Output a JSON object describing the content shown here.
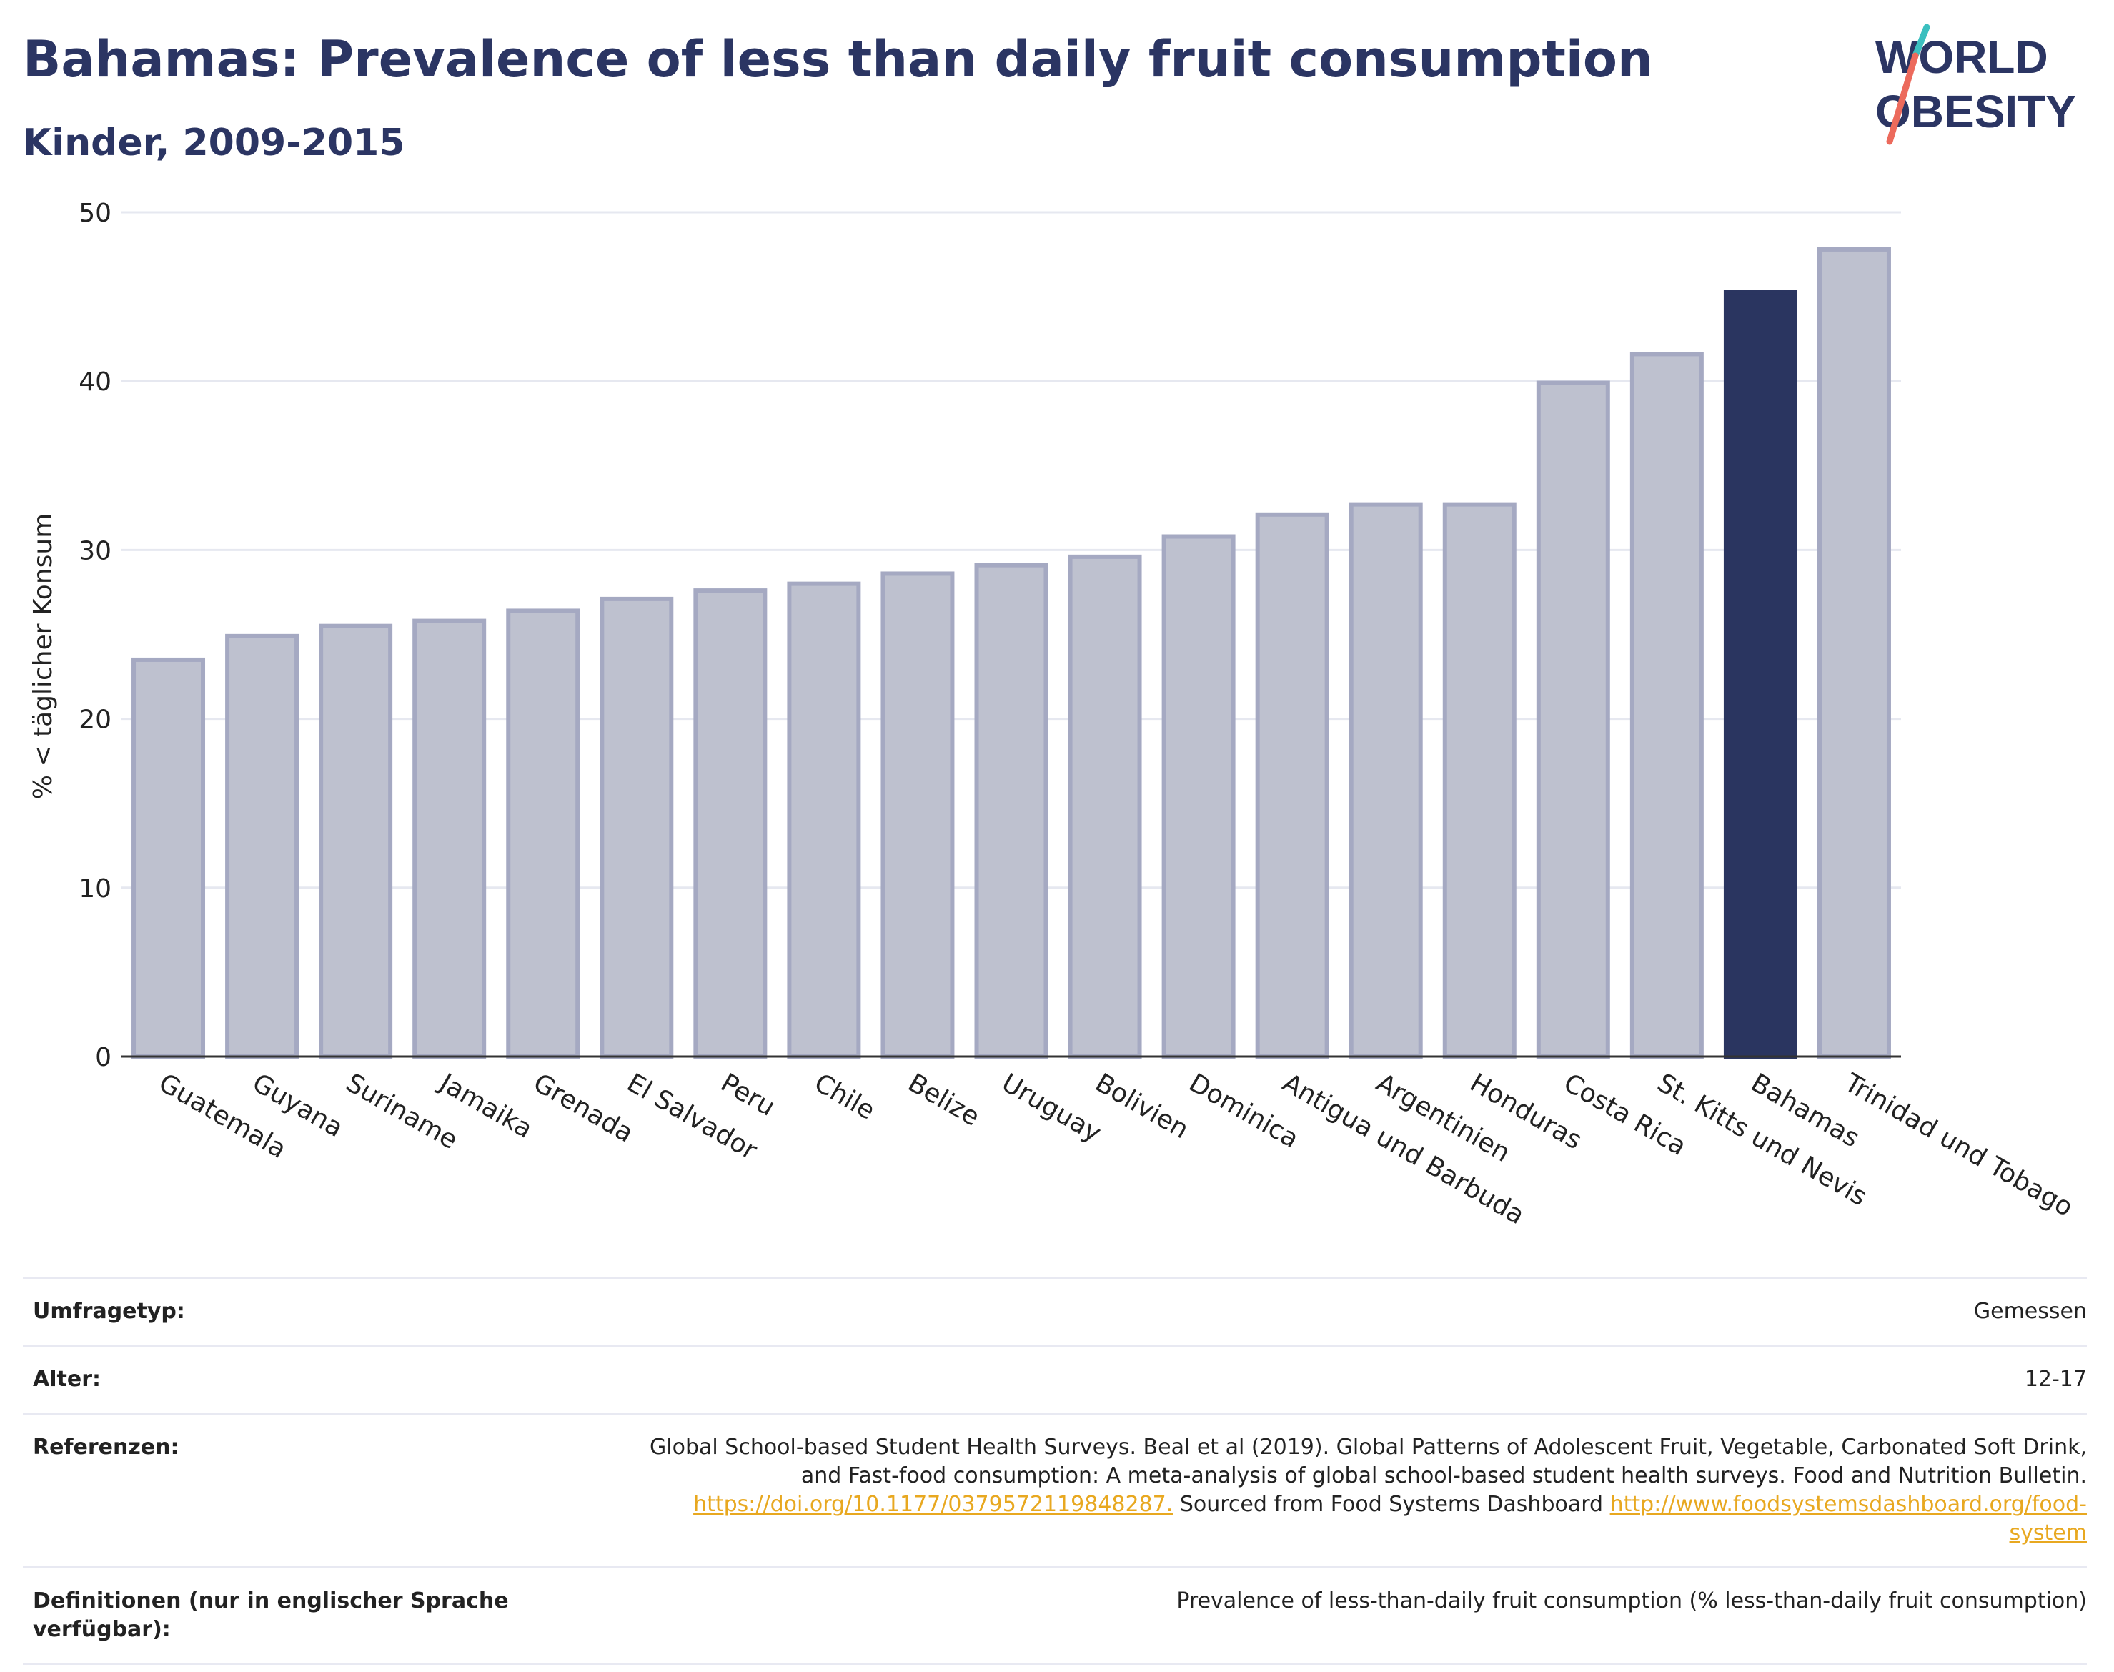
{
  "header": {
    "title": "Bahamas: Prevalence of less than daily fruit consumption",
    "subtitle": "Kinder, 2009-2015"
  },
  "logo": {
    "line1": "WORLD",
    "line2": "OBESITY",
    "colors": {
      "text": "#2b3563",
      "slash_teal": "#3bbfbf",
      "slash_coral": "#ec6a5c"
    }
  },
  "chart_data": {
    "type": "bar",
    "ylabel": "% < täglicher Konsum",
    "xlabel": "",
    "ylim": [
      0,
      50
    ],
    "yticks": [
      0,
      10,
      20,
      30,
      40,
      50
    ],
    "grid": true,
    "categories": [
      "Guatemala",
      "Guyana",
      "Suriname",
      "Jamaika",
      "Grenada",
      "El Salvador",
      "Peru",
      "Chile",
      "Belize",
      "Uruguay",
      "Bolivien",
      "Dominica",
      "Antigua und Barbuda",
      "Argentinien",
      "Honduras",
      "Costa Rica",
      "St. Kitts und Nevis",
      "Bahamas",
      "Trinidad und Tobago"
    ],
    "values": [
      23.5,
      24.9,
      25.5,
      25.8,
      26.4,
      27.1,
      27.6,
      28.0,
      28.6,
      29.1,
      29.6,
      30.8,
      32.1,
      32.7,
      32.7,
      39.9,
      41.6,
      45.3,
      47.8
    ],
    "highlight": "Bahamas",
    "colors": {
      "default_fill": "#bec1cf",
      "default_stroke": "#a5a9c2",
      "highlight": "#2a3560",
      "axis": "#333333",
      "grid": "#e6e8f0"
    }
  },
  "info": {
    "survey_type_label": "Umfragetyp:",
    "survey_type_value": "Gemessen",
    "age_label": "Alter:",
    "age_value": "12-17",
    "references_label": "Referenzen:",
    "references_text_1": "Global School-based Student Health Surveys. Beal et al (2019). Global Patterns of Adolescent Fruit, Vegetable, Carbonated Soft Drink,",
    "references_text_2": "and Fast-food consumption: A meta-analysis of global school-based student health surveys. Food and Nutrition Bulletin.",
    "references_link_1": "https://doi.org/10.1177/0379572119848287.",
    "references_text_3": " Sourced from Food Systems Dashboard ",
    "references_link_2a": "http://www.foodsystemsdashboard.org/food-",
    "references_link_2b": "system",
    "definitions_label": "Definitionen (nur in englischer Sprache verfügbar):",
    "definitions_value": "Prevalence of less-than-daily fruit consumption (% less-than-daily fruit consumption)"
  }
}
